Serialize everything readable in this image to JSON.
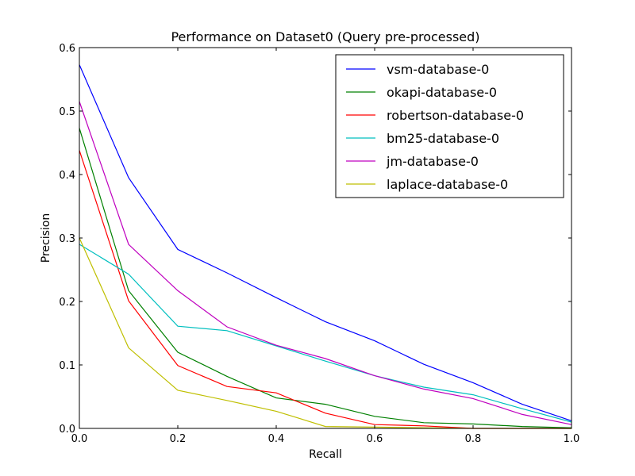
{
  "chart_data": {
    "type": "line",
    "title": "Performance on Dataset0 (Query pre-processed)",
    "xlabel": "Recall",
    "ylabel": "Precision",
    "xlim": [
      0.0,
      1.0
    ],
    "ylim": [
      0.0,
      0.6
    ],
    "xticks": [
      "0.0",
      "0.2",
      "0.4",
      "0.6",
      "0.8",
      "1.0"
    ],
    "yticks": [
      "0.0",
      "0.1",
      "0.2",
      "0.3",
      "0.4",
      "0.5",
      "0.6"
    ],
    "x": [
      0.0,
      0.1,
      0.2,
      0.3,
      0.4,
      0.5,
      0.6,
      0.7,
      0.8,
      0.9,
      1.0
    ],
    "grid": false,
    "legend_position": "top-right",
    "series": [
      {
        "name": "vsm-database-0",
        "color": "#0000ff",
        "values": [
          0.573,
          0.395,
          0.282,
          0.245,
          0.206,
          0.168,
          0.138,
          0.101,
          0.072,
          0.038,
          0.012
        ]
      },
      {
        "name": "okapi-database-0",
        "color": "#008000",
        "values": [
          0.473,
          0.217,
          0.12,
          0.082,
          0.048,
          0.038,
          0.019,
          0.009,
          0.007,
          0.003,
          0.001
        ]
      },
      {
        "name": "robertson-database-0",
        "color": "#ff0000",
        "values": [
          0.438,
          0.201,
          0.099,
          0.066,
          0.056,
          0.024,
          0.006,
          0.004,
          0.0,
          0.0,
          0.0
        ]
      },
      {
        "name": "bm25-database-0",
        "color": "#00bfbf",
        "values": [
          0.29,
          0.243,
          0.161,
          0.154,
          0.13,
          0.106,
          0.083,
          0.065,
          0.053,
          0.031,
          0.01
        ]
      },
      {
        "name": "jm-database-0",
        "color": "#bf00bf",
        "values": [
          0.515,
          0.29,
          0.217,
          0.16,
          0.131,
          0.11,
          0.083,
          0.062,
          0.047,
          0.022,
          0.006
        ]
      },
      {
        "name": "laplace-database-0",
        "color": "#bfbf00",
        "values": [
          0.3,
          0.127,
          0.06,
          0.044,
          0.027,
          0.003,
          0.002,
          0.001,
          0.0,
          0.0,
          0.0
        ]
      }
    ]
  }
}
